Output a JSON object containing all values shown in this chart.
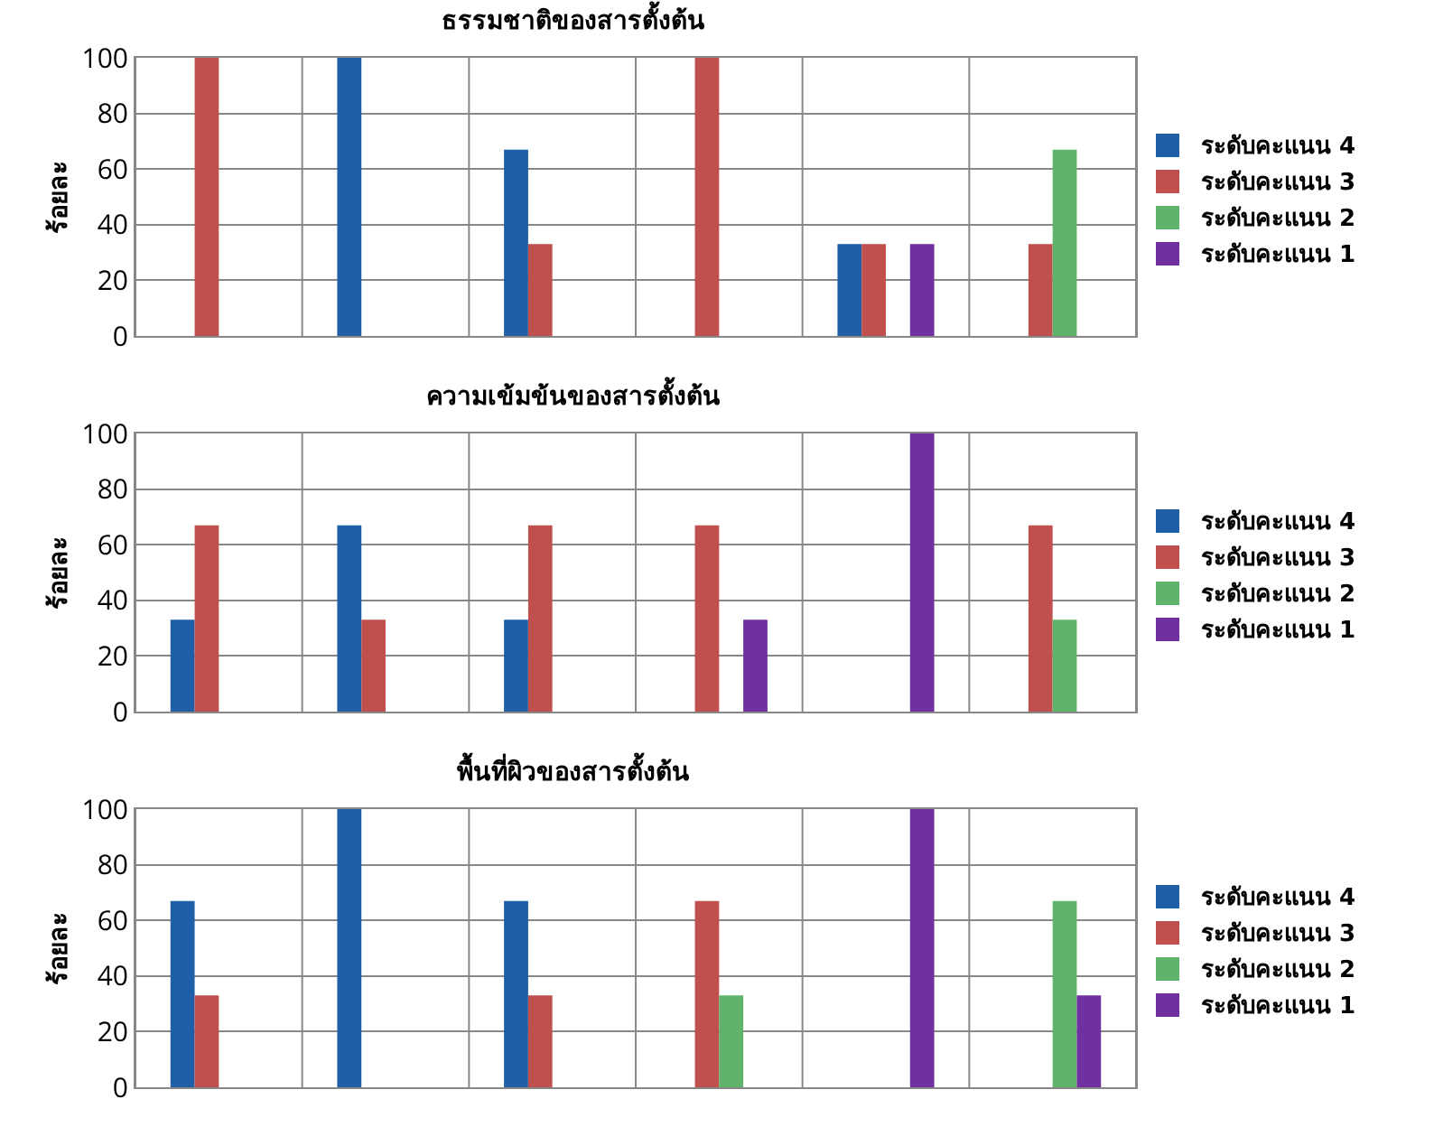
{
  "chart_data": [
    {
      "type": "bar",
      "title": "ธรรมชาติของสารตั้งต้น",
      "ylabel": "ร้อยละ",
      "categories": [
        null,
        null,
        null,
        null,
        null,
        null
      ],
      "ylim": [
        0,
        100
      ],
      "yticks": [
        0,
        20,
        40,
        60,
        80,
        100
      ],
      "grid": true,
      "legend": "right",
      "tick_labels": "y",
      "series": [
        {
          "name": "ระดับคะแนน 4",
          "color": "#1f5fa8",
          "values": [
            0,
            100,
            67,
            0,
            33,
            0
          ]
        },
        {
          "name": "ระดับคะแนน 3",
          "color": "#c0504d",
          "values": [
            100,
            0,
            33,
            100,
            33,
            33
          ]
        },
        {
          "name": "ระดับคะแนน 2",
          "color": "#5fb36a",
          "values": [
            0,
            0,
            0,
            0,
            0,
            67
          ]
        },
        {
          "name": "ระดับคะแนน 1",
          "color": "#7030a0",
          "values": [
            0,
            0,
            0,
            0,
            33,
            0
          ]
        }
      ]
    },
    {
      "type": "bar",
      "title": "ความเข้มข้นของสารตั้งต้น",
      "ylabel": "ร้อยละ",
      "categories": [
        null,
        null,
        null,
        null,
        null,
        null
      ],
      "ylim": [
        0,
        100
      ],
      "yticks": [
        0,
        20,
        40,
        60,
        80,
        100
      ],
      "grid": true,
      "legend": "right",
      "tick_labels": "y",
      "series": [
        {
          "name": "ระดับคะแนน 4",
          "color": "#1f5fa8",
          "values": [
            33,
            67,
            33,
            0,
            0,
            0
          ]
        },
        {
          "name": "ระดับคะแนน 3",
          "color": "#c0504d",
          "values": [
            67,
            33,
            67,
            67,
            0,
            67
          ]
        },
        {
          "name": "ระดับคะแนน 2",
          "color": "#5fb36a",
          "values": [
            0,
            0,
            0,
            0,
            0,
            33
          ]
        },
        {
          "name": "ระดับคะแนน 1",
          "color": "#7030a0",
          "values": [
            0,
            0,
            0,
            33,
            100,
            0
          ]
        }
      ]
    },
    {
      "type": "bar",
      "title": "พื้นที่ผิวของสารตั้งต้น",
      "ylabel": "ร้อยละ",
      "categories": [
        null,
        null,
        null,
        null,
        null,
        null
      ],
      "ylim": [
        0,
        100
      ],
      "yticks": [
        0,
        20,
        40,
        60,
        80,
        100
      ],
      "grid": true,
      "legend": "right",
      "tick_labels": "y",
      "series": [
        {
          "name": "ระดับคะแนน 4",
          "color": "#1f5fa8",
          "values": [
            67,
            100,
            67,
            0,
            0,
            0
          ]
        },
        {
          "name": "ระดับคะแนน 3",
          "color": "#c0504d",
          "values": [
            33,
            0,
            33,
            67,
            0,
            0
          ]
        },
        {
          "name": "ระดับคะแนน 2",
          "color": "#5fb36a",
          "values": [
            0,
            0,
            0,
            33,
            0,
            67
          ]
        },
        {
          "name": "ระดับคะแนน 1",
          "color": "#7030a0",
          "values": [
            0,
            0,
            0,
            0,
            100,
            33
          ]
        }
      ]
    }
  ]
}
